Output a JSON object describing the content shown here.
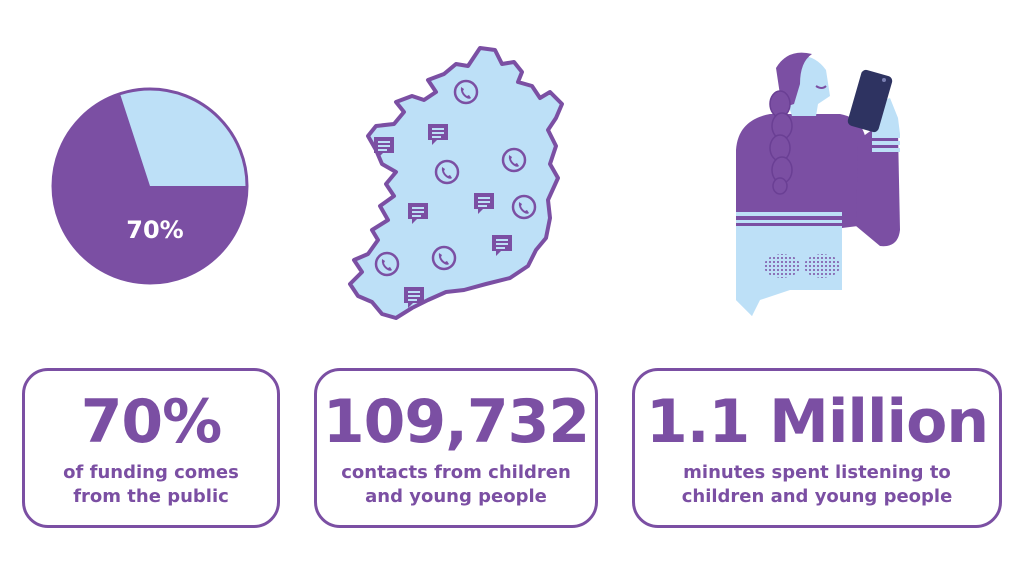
{
  "pie": {
    "label": "70%",
    "percent": 70,
    "colors": {
      "main": "#7b4fa3",
      "rest": "#bde0f7"
    }
  },
  "map": {
    "icons": [
      "phone-icon",
      "chat-icon"
    ]
  },
  "stats": [
    {
      "value": "70%",
      "line1": "of funding comes",
      "line2": "from the public"
    },
    {
      "value": "109,732",
      "line1": "contacts from children",
      "line2": "and young people"
    },
    {
      "value": "1.1 Million",
      "line1": "minutes spent listening to",
      "line2": "children and young people"
    }
  ],
  "colors": {
    "purple": "#7b4fa3",
    "light_blue": "#bde0f7",
    "navy": "#2e3361"
  }
}
